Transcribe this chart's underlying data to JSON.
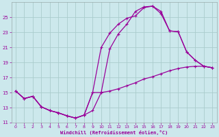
{
  "xlabel": "Windchill (Refroidissement éolien,°C)",
  "bg_color": "#cce8ec",
  "grid_color": "#aacccc",
  "line_color": "#990099",
  "xlim": [
    -0.5,
    23.5
  ],
  "ylim": [
    11,
    27
  ],
  "yticks": [
    11,
    13,
    15,
    17,
    19,
    21,
    23,
    25
  ],
  "xticks": [
    0,
    1,
    2,
    3,
    4,
    5,
    6,
    7,
    8,
    9,
    10,
    11,
    12,
    13,
    14,
    15,
    16,
    17,
    18,
    19,
    20,
    21,
    22,
    23
  ],
  "curve1_x": [
    0,
    1,
    2,
    3,
    4,
    5,
    6,
    7,
    8,
    9,
    10,
    11,
    12,
    13,
    14,
    15,
    16,
    17,
    18,
    19,
    20,
    21,
    22,
    23
  ],
  "curve1_y": [
    15.2,
    14.2,
    14.5,
    13.1,
    12.6,
    12.3,
    11.9,
    11.6,
    12.0,
    12.6,
    15.0,
    15.2,
    15.5,
    15.9,
    16.3,
    16.8,
    17.1,
    17.5,
    17.9,
    18.2,
    18.4,
    18.5,
    18.5,
    18.3
  ],
  "curve2_x": [
    0,
    1,
    2,
    3,
    4,
    5,
    6,
    7,
    8,
    9,
    10,
    11,
    12,
    13,
    14,
    15,
    16,
    17,
    18,
    19,
    20,
    21,
    22,
    23
  ],
  "curve2_y": [
    15.2,
    14.2,
    14.5,
    13.1,
    12.6,
    12.3,
    11.9,
    11.6,
    12.0,
    15.0,
    21.0,
    22.9,
    24.1,
    24.9,
    25.2,
    26.3,
    26.5,
    25.8,
    23.2,
    23.1,
    20.4,
    19.3,
    18.5,
    18.3
  ],
  "curve3_x": [
    0,
    1,
    2,
    3,
    4,
    5,
    6,
    7,
    8,
    9,
    10,
    11,
    12,
    13,
    14,
    15,
    16,
    17,
    18,
    19,
    20,
    21,
    22,
    23
  ],
  "curve3_y": [
    15.2,
    14.2,
    14.5,
    13.1,
    12.6,
    12.3,
    11.9,
    11.6,
    12.0,
    15.0,
    15.0,
    20.8,
    22.8,
    24.1,
    25.8,
    26.4,
    26.5,
    25.5,
    23.2,
    23.1,
    20.4,
    19.3,
    18.5,
    18.3
  ]
}
